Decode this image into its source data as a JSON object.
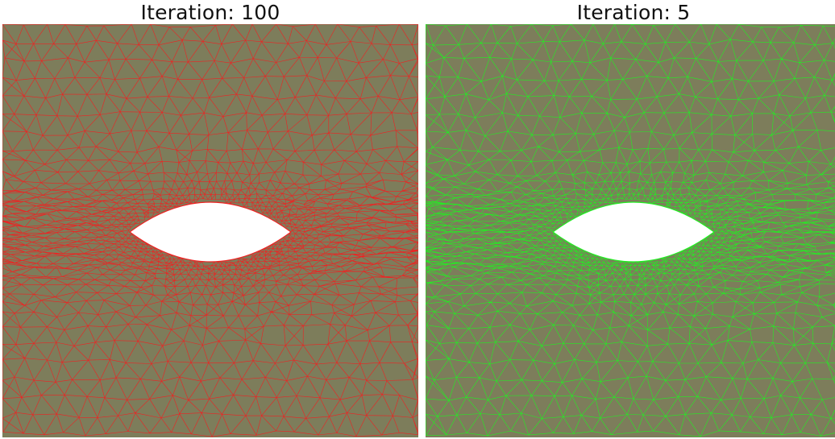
{
  "panels": [
    {
      "title": "Iteration: 100",
      "fill_color": "#7d7d5b",
      "edge_color": "#ee2222",
      "hole_color": "#ffffff"
    },
    {
      "title": "Iteration: 5",
      "fill_color": "#7d7d5b",
      "edge_color": "#22ee22",
      "hole_color": "#ffffff"
    }
  ]
}
